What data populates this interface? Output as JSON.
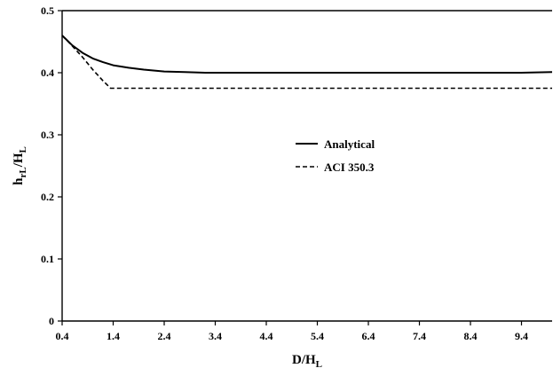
{
  "chart_data": {
    "type": "line",
    "xlabel": {
      "main": "D/H",
      "sub": "L"
    },
    "ylabel": {
      "main": "h",
      "sub1": "rL",
      "slash": "/H",
      "sub2": "L"
    },
    "xlim": [
      0.4,
      10.0
    ],
    "ylim": [
      0,
      0.5
    ],
    "xticks": [
      0.4,
      1.4,
      2.4,
      3.4,
      4.4,
      5.4,
      6.4,
      7.4,
      8.4,
      9.4
    ],
    "xtick_labels": [
      "0.4",
      "1.4",
      "2.4",
      "3.4",
      "4.4",
      "5.4",
      "6.4",
      "7.4",
      "8.4",
      "9.4"
    ],
    "yticks": [
      0,
      0.1,
      0.2,
      0.3,
      0.4,
      0.5
    ],
    "ytick_labels": [
      "0",
      "0.1",
      "0.2",
      "0.3",
      "0.4",
      "0.5"
    ],
    "grid": false,
    "legend_position": "center-right",
    "series": [
      {
        "name": "Analytical",
        "style": "solid",
        "color": "#000000",
        "x": [
          0.4,
          0.5,
          0.6,
          0.8,
          1.0,
          1.2,
          1.4,
          1.7,
          2.0,
          2.4,
          2.8,
          3.2,
          3.6,
          4.4,
          5.4,
          6.4,
          7.4,
          8.4,
          9.4,
          10.0
        ],
        "y": [
          0.46,
          0.452,
          0.444,
          0.432,
          0.423,
          0.417,
          0.412,
          0.408,
          0.405,
          0.402,
          0.401,
          0.4,
          0.4,
          0.4,
          0.4,
          0.4,
          0.4,
          0.4,
          0.4,
          0.401
        ]
      },
      {
        "name": "ACI 350.3",
        "style": "dashed",
        "color": "#000000",
        "x": [
          0.4,
          0.6,
          0.8,
          1.0,
          1.2,
          1.35,
          1.5,
          2.4,
          4.4,
          6.4,
          8.4,
          10.0
        ],
        "y": [
          0.46,
          0.443,
          0.425,
          0.405,
          0.387,
          0.375,
          0.375,
          0.375,
          0.375,
          0.375,
          0.375,
          0.375
        ]
      }
    ]
  }
}
